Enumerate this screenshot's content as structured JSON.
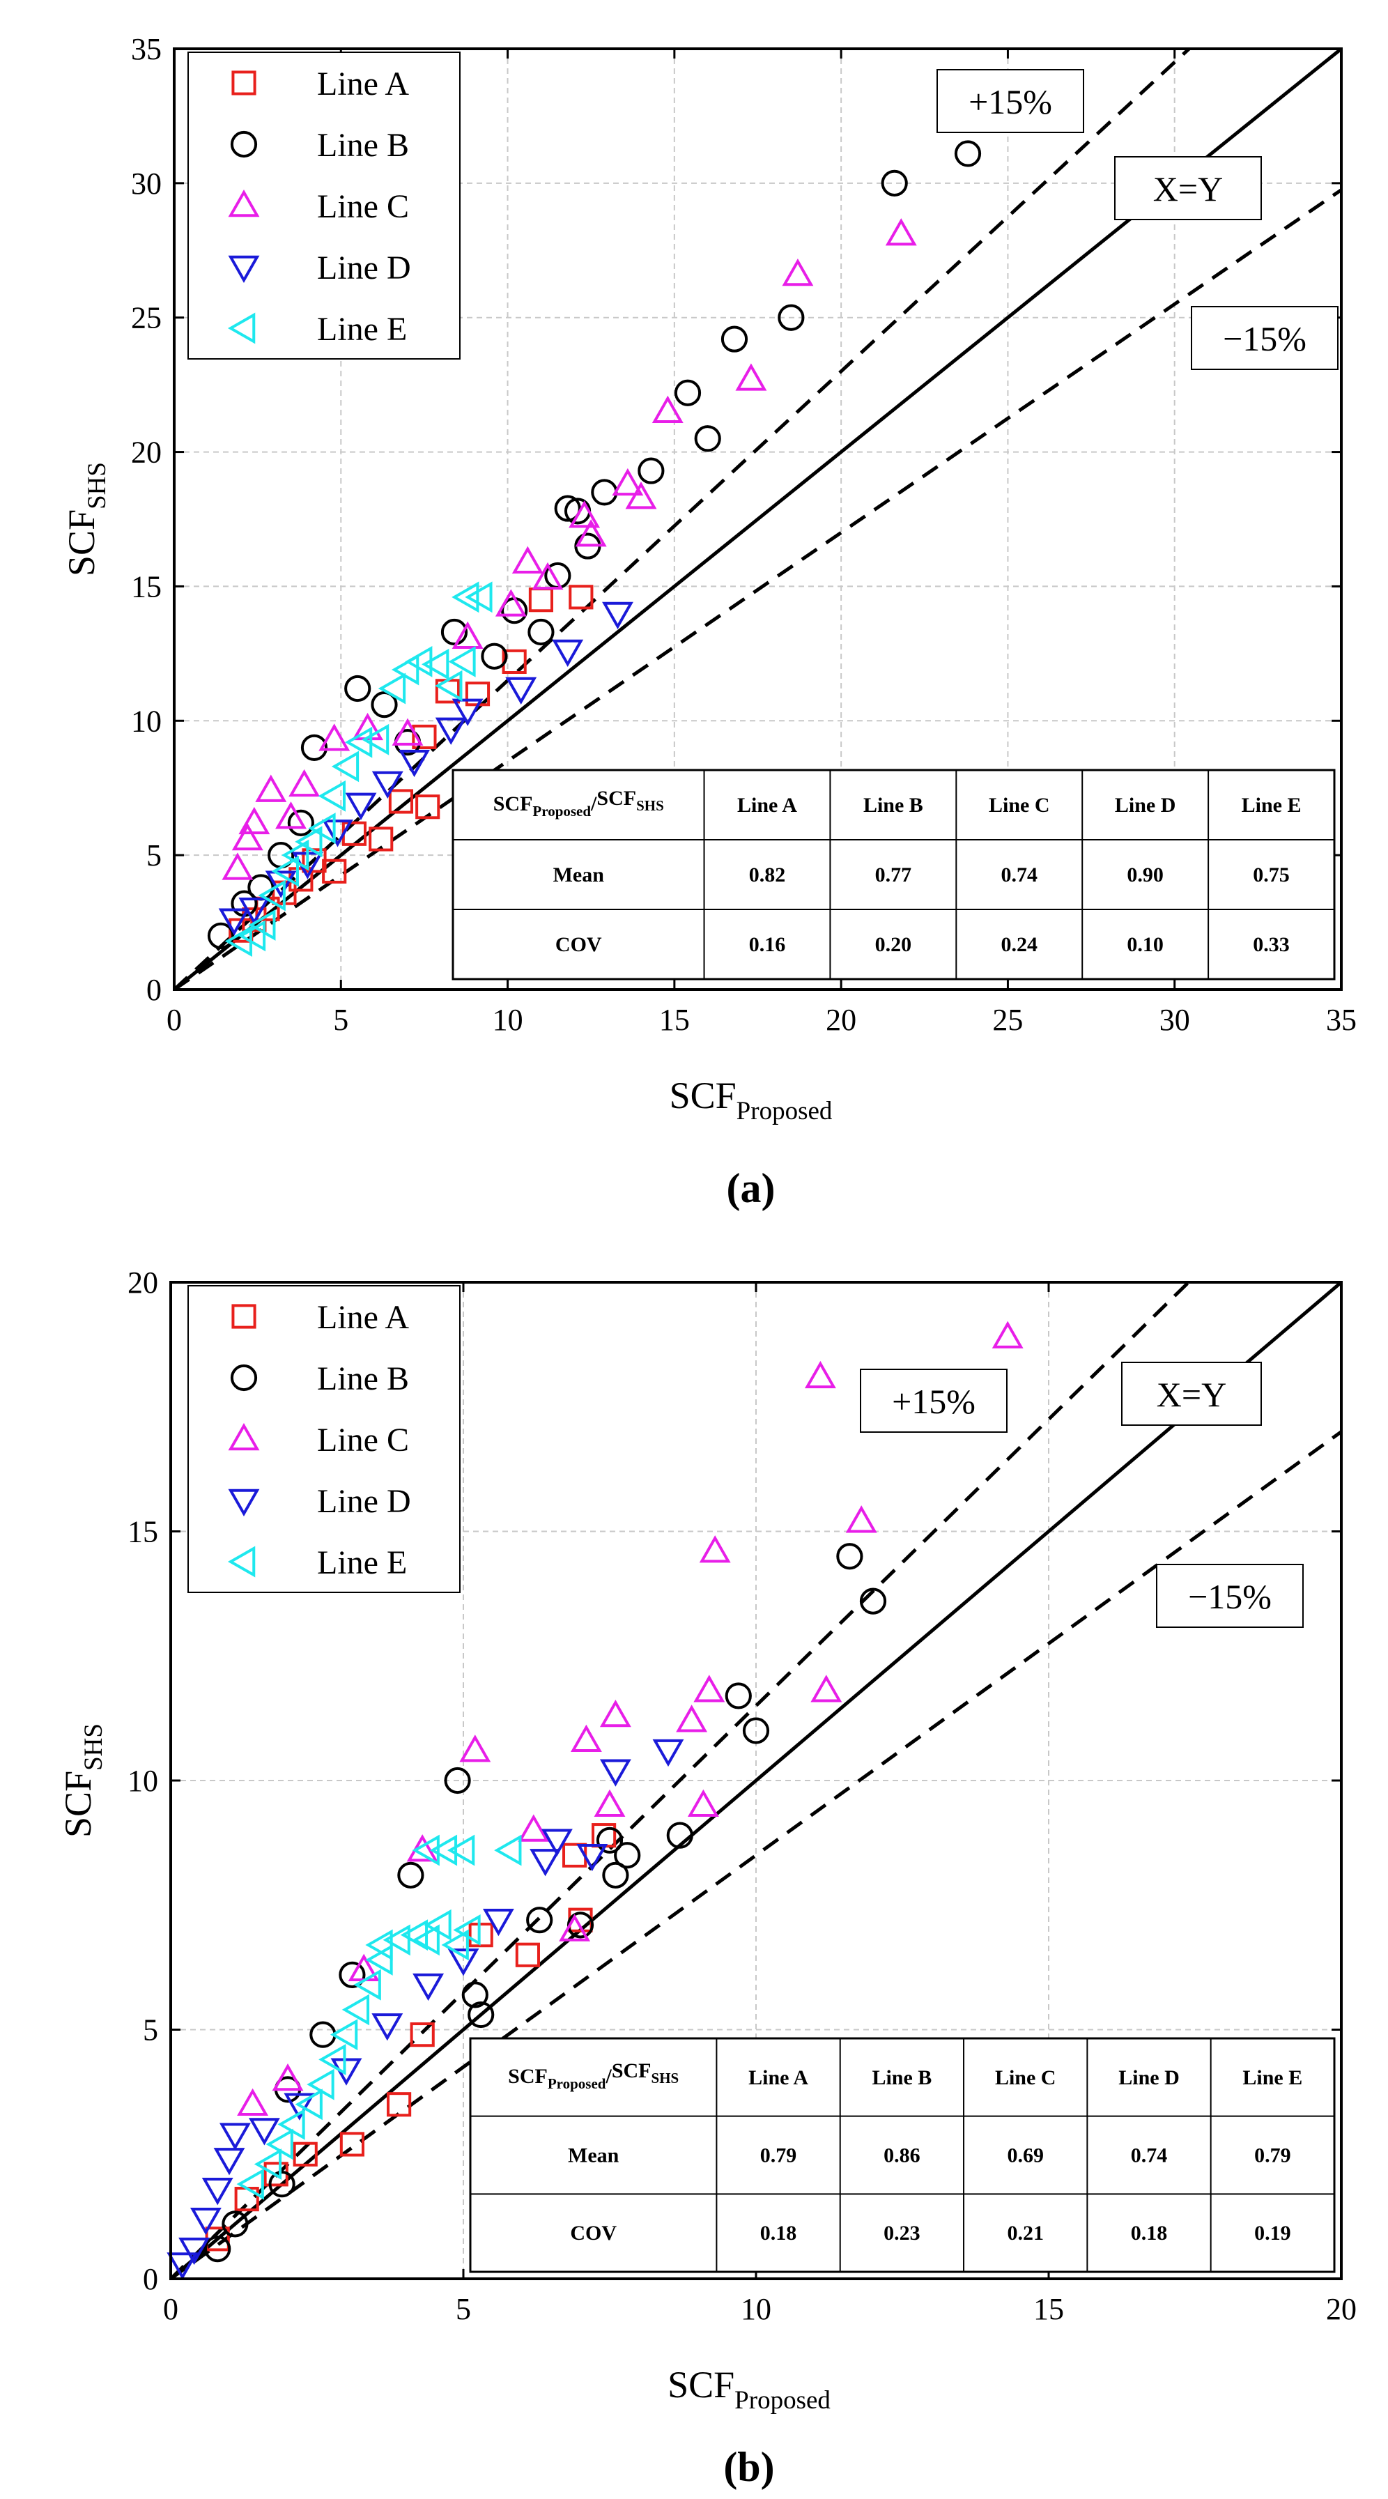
{
  "chart_data": [
    {
      "type": "scatter",
      "panel_label": "(a)",
      "xlabel": "SCF",
      "xlabel_sub": "Proposed",
      "ylabel": "SCF",
      "ylabel_sub": "SHS",
      "xlim": [
        0,
        35
      ],
      "ylim": [
        0,
        35
      ],
      "xticks": [
        "0",
        "5",
        "10",
        "15",
        "20",
        "25",
        "30",
        "35"
      ],
      "yticks": [
        "0",
        "5",
        "10",
        "15",
        "20",
        "25",
        "30",
        "35"
      ],
      "grid": true,
      "legend_position": "top-left",
      "reference_lines": [
        {
          "label": "X=Y",
          "slope": 1.0,
          "style": "solid"
        },
        {
          "label": "+15%",
          "slope": 1.15,
          "style": "dashed"
        },
        {
          "label": "−15%",
          "slope": 0.85,
          "style": "dashed"
        }
      ],
      "series": [
        {
          "name": "Line A",
          "marker": "square",
          "color": "#e8201c",
          "points": [
            [
              2.0,
              2.2
            ],
            [
              2.4,
              2.6
            ],
            [
              2.8,
              3.0
            ],
            [
              3.3,
              3.6
            ],
            [
              3.8,
              4.1
            ],
            [
              4.2,
              4.8
            ],
            [
              4.8,
              4.4
            ],
            [
              5.4,
              5.8
            ],
            [
              6.2,
              5.6
            ],
            [
              6.8,
              7.0
            ],
            [
              7.6,
              6.8
            ],
            [
              7.5,
              9.4
            ],
            [
              8.2,
              11.1
            ],
            [
              9.1,
              11.0
            ],
            [
              10.2,
              12.2
            ],
            [
              11.0,
              14.5
            ],
            [
              12.2,
              14.6
            ]
          ]
        },
        {
          "name": "Line B",
          "marker": "circle",
          "color": "#000000",
          "points": [
            [
              1.4,
              2.0
            ],
            [
              2.1,
              3.2
            ],
            [
              2.6,
              3.8
            ],
            [
              3.2,
              5.0
            ],
            [
              3.8,
              6.2
            ],
            [
              4.2,
              9.0
            ],
            [
              5.5,
              11.2
            ],
            [
              6.3,
              10.6
            ],
            [
              7.0,
              9.2
            ],
            [
              8.4,
              13.3
            ],
            [
              9.6,
              12.4
            ],
            [
              10.2,
              14.1
            ],
            [
              11.0,
              13.3
            ],
            [
              11.5,
              15.4
            ],
            [
              11.8,
              17.9
            ],
            [
              12.1,
              17.8
            ],
            [
              12.4,
              16.5
            ],
            [
              12.9,
              18.5
            ],
            [
              14.3,
              19.3
            ],
            [
              15.4,
              22.2
            ],
            [
              16.0,
              20.5
            ],
            [
              16.8,
              24.2
            ],
            [
              18.5,
              25.0
            ],
            [
              21.6,
              30.0
            ],
            [
              23.8,
              31.1
            ]
          ]
        },
        {
          "name": "Line C",
          "marker": "triangle-up",
          "color": "#e81ee8",
          "points": [
            [
              1.9,
              4.5
            ],
            [
              2.2,
              5.6
            ],
            [
              2.4,
              6.2
            ],
            [
              2.9,
              7.4
            ],
            [
              3.5,
              6.4
            ],
            [
              3.9,
              7.6
            ],
            [
              4.8,
              9.3
            ],
            [
              5.8,
              9.7
            ],
            [
              7.0,
              9.5
            ],
            [
              8.8,
              13.1
            ],
            [
              10.1,
              14.3
            ],
            [
              10.6,
              15.9
            ],
            [
              11.2,
              15.3
            ],
            [
              12.3,
              17.6
            ],
            [
              12.5,
              16.9
            ],
            [
              13.6,
              18.8
            ],
            [
              14.0,
              18.3
            ],
            [
              14.8,
              21.5
            ],
            [
              17.3,
              22.7
            ],
            [
              18.7,
              26.6
            ],
            [
              21.8,
              28.1
            ]
          ]
        },
        {
          "name": "Line D",
          "marker": "triangle-down",
          "color": "#1a1ad9",
          "points": [
            [
              1.8,
              2.6
            ],
            [
              2.4,
              3.0
            ],
            [
              3.2,
              4.0
            ],
            [
              4.0,
              4.7
            ],
            [
              4.9,
              5.9
            ],
            [
              5.6,
              6.9
            ],
            [
              6.4,
              7.7
            ],
            [
              7.2,
              8.5
            ],
            [
              8.3,
              9.7
            ],
            [
              8.8,
              10.4
            ],
            [
              10.4,
              11.2
            ],
            [
              11.8,
              12.6
            ],
            [
              13.3,
              14.0
            ]
          ]
        },
        {
          "name": "Line E",
          "marker": "triangle-left",
          "color": "#1ee8ee",
          "points": [
            [
              2.0,
              1.8
            ],
            [
              2.4,
              2.0
            ],
            [
              2.7,
              2.4
            ],
            [
              3.0,
              3.5
            ],
            [
              3.4,
              4.4
            ],
            [
              3.7,
              5.0
            ],
            [
              4.1,
              5.5
            ],
            [
              4.5,
              6.0
            ],
            [
              4.8,
              7.2
            ],
            [
              5.2,
              8.3
            ],
            [
              5.6,
              9.2
            ],
            [
              6.1,
              9.3
            ],
            [
              6.6,
              11.2
            ],
            [
              7.0,
              11.9
            ],
            [
              7.4,
              12.2
            ],
            [
              7.9,
              12.1
            ],
            [
              8.3,
              11.3
            ],
            [
              8.7,
              12.2
            ],
            [
              8.8,
              14.6
            ],
            [
              9.2,
              14.6
            ]
          ]
        }
      ],
      "summary_table": {
        "header": [
          "SCF",
          "Line A",
          "Line B",
          "Line C",
          "Line D",
          "Line E"
        ],
        "header_sub": [
          "Proposed",
          "SHS"
        ],
        "rows": [
          {
            "label": "Mean",
            "values": [
              "0.82",
              "0.77",
              "0.74",
              "0.90",
              "0.75"
            ]
          },
          {
            "label": "COV",
            "values": [
              "0.16",
              "0.20",
              "0.24",
              "0.10",
              "0.33"
            ]
          }
        ]
      }
    },
    {
      "type": "scatter",
      "panel_label": "(b)",
      "xlabel": "SCF",
      "xlabel_sub": "Proposed",
      "ylabel": "SCF",
      "ylabel_sub": "SHS",
      "xlim": [
        0,
        20
      ],
      "ylim": [
        0,
        20
      ],
      "xticks": [
        "0",
        "5",
        "10",
        "15",
        "20"
      ],
      "yticks": [
        "0",
        "5",
        "10",
        "15",
        "20"
      ],
      "grid": true,
      "legend_position": "top-left",
      "reference_lines": [
        {
          "label": "X=Y",
          "slope": 1.0,
          "style": "solid"
        },
        {
          "label": "+15%",
          "slope": 1.15,
          "style": "dashed"
        },
        {
          "label": "−15%",
          "slope": 0.85,
          "style": "dashed"
        }
      ],
      "series": [
        {
          "name": "Line A",
          "marker": "square",
          "color": "#e8201c",
          "points": [
            [
              0.8,
              0.8
            ],
            [
              1.3,
              1.6
            ],
            [
              1.8,
              2.1
            ],
            [
              2.3,
              2.5
            ],
            [
              3.1,
              2.7
            ],
            [
              3.9,
              3.5
            ],
            [
              4.3,
              4.9
            ],
            [
              5.3,
              6.9
            ],
            [
              6.1,
              6.5
            ],
            [
              6.9,
              8.5
            ],
            [
              7.0,
              7.2
            ],
            [
              7.4,
              8.9
            ]
          ]
        },
        {
          "name": "Line B",
          "marker": "circle",
          "color": "#000000",
          "points": [
            [
              0.8,
              0.6
            ],
            [
              1.1,
              1.1
            ],
            [
              1.9,
              1.9
            ],
            [
              2.0,
              3.8
            ],
            [
              2.6,
              4.9
            ],
            [
              3.1,
              6.1
            ],
            [
              4.1,
              8.1
            ],
            [
              4.9,
              10.0
            ],
            [
              5.2,
              5.7
            ],
            [
              5.3,
              5.3
            ],
            [
              6.3,
              7.2
            ],
            [
              7.0,
              7.1
            ],
            [
              7.5,
              8.8
            ],
            [
              7.6,
              8.1
            ],
            [
              7.8,
              8.5
            ],
            [
              8.7,
              8.9
            ],
            [
              9.7,
              11.7
            ],
            [
              10.0,
              11.0
            ],
            [
              11.6,
              14.5
            ],
            [
              12.0,
              13.6
            ]
          ]
        },
        {
          "name": "Line C",
          "marker": "triangle-up",
          "color": "#e81ee8",
          "points": [
            [
              1.4,
              3.5
            ],
            [
              2.0,
              4.0
            ],
            [
              3.3,
              6.2
            ],
            [
              4.3,
              8.6
            ],
            [
              5.2,
              10.6
            ],
            [
              6.2,
              9.0
            ],
            [
              6.9,
              7.0
            ],
            [
              7.1,
              10.8
            ],
            [
              7.5,
              9.5
            ],
            [
              7.6,
              11.3
            ],
            [
              8.9,
              11.2
            ],
            [
              9.1,
              9.5
            ],
            [
              9.2,
              11.8
            ],
            [
              9.3,
              14.6
            ],
            [
              11.1,
              18.1
            ],
            [
              11.2,
              11.8
            ],
            [
              11.8,
              15.2
            ],
            [
              14.3,
              18.9
            ]
          ]
        },
        {
          "name": "Line D",
          "marker": "triangle-down",
          "color": "#1a1ad9",
          "points": [
            [
              0.2,
              0.3
            ],
            [
              0.4,
              0.6
            ],
            [
              0.6,
              1.2
            ],
            [
              0.8,
              1.8
            ],
            [
              1.0,
              2.4
            ],
            [
              1.1,
              2.9
            ],
            [
              1.6,
              3.0
            ],
            [
              2.2,
              3.5
            ],
            [
              3.0,
              4.2
            ],
            [
              3.7,
              5.1
            ],
            [
              4.4,
              5.9
            ],
            [
              5.0,
              6.4
            ],
            [
              5.6,
              7.2
            ],
            [
              6.4,
              8.4
            ],
            [
              6.6,
              8.8
            ],
            [
              7.2,
              8.5
            ],
            [
              7.6,
              10.2
            ],
            [
              8.5,
              10.6
            ]
          ]
        },
        {
          "name": "Line E",
          "marker": "triangle-left",
          "color": "#1ee8ee",
          "points": [
            [
              1.4,
              1.9
            ],
            [
              1.7,
              2.3
            ],
            [
              1.9,
              2.7
            ],
            [
              2.1,
              3.1
            ],
            [
              2.4,
              3.5
            ],
            [
              2.6,
              3.9
            ],
            [
              2.8,
              4.4
            ],
            [
              3.0,
              4.9
            ],
            [
              3.2,
              5.4
            ],
            [
              3.4,
              5.9
            ],
            [
              3.6,
              6.4
            ],
            [
              3.6,
              6.7
            ],
            [
              3.9,
              6.8
            ],
            [
              4.2,
              6.9
            ],
            [
              4.4,
              6.8
            ],
            [
              4.6,
              7.1
            ],
            [
              4.9,
              6.7
            ],
            [
              5.1,
              7.0
            ],
            [
              4.4,
              8.6
            ],
            [
              4.7,
              8.6
            ],
            [
              5.0,
              8.6
            ],
            [
              5.8,
              8.6
            ]
          ]
        }
      ],
      "summary_table": {
        "header": [
          "SCF",
          "Line A",
          "Line B",
          "Line C",
          "Line D",
          "Line E"
        ],
        "header_sub": [
          "Proposed",
          "SHS"
        ],
        "rows": [
          {
            "label": "Mean",
            "values": [
              "0.79",
              "0.86",
              "0.69",
              "0.74",
              "0.79"
            ]
          },
          {
            "label": "COV",
            "values": [
              "0.18",
              "0.23",
              "0.21",
              "0.18",
              "0.19"
            ]
          }
        ]
      }
    }
  ]
}
